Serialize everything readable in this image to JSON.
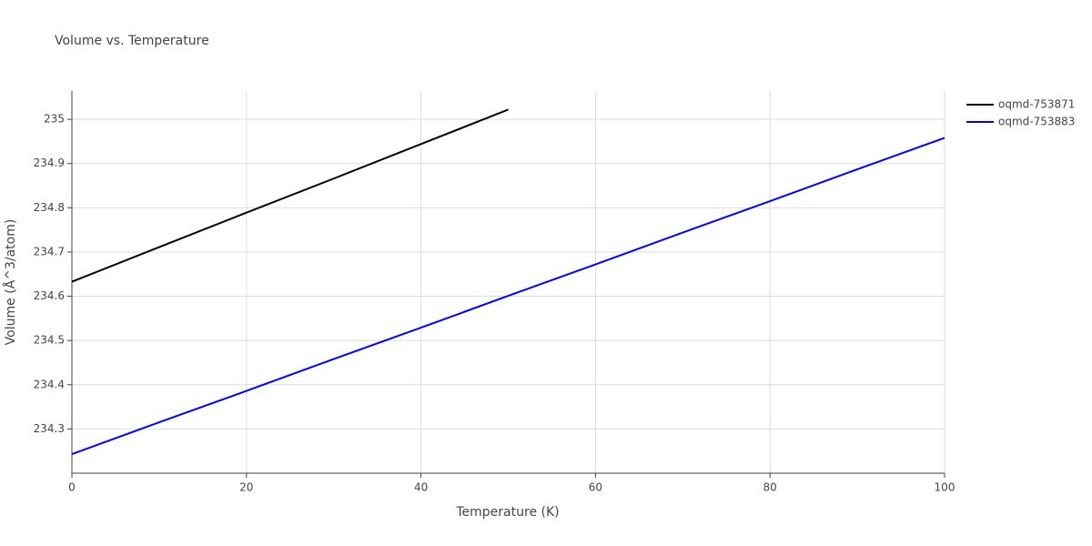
{
  "chart_data": {
    "type": "line",
    "title": "Volume vs. Temperature",
    "x_label": "Temperature (K)",
    "y_label": "Volume (Å^3/atom)",
    "x": [
      0,
      10,
      20,
      30,
      40,
      50,
      60,
      70,
      80,
      90,
      100
    ],
    "series": [
      {
        "name": "oqmd-753871",
        "color": "#000000",
        "values": [
          234.633,
          234.711,
          234.789,
          234.866,
          234.944,
          235.022,
          null,
          null,
          null,
          null,
          null
        ]
      },
      {
        "name": "oqmd-753883",
        "color": "#0000ff",
        "values": [
          234.243,
          234.315,
          234.386,
          234.458,
          234.529,
          234.601,
          234.672,
          234.744,
          234.815,
          234.887,
          234.958
        ]
      }
    ],
    "xlim": [
      0,
      100
    ],
    "xticks": [
      0,
      20,
      40,
      60,
      80,
      100
    ],
    "ylim": [
      234.2,
      235.064
    ],
    "yticks": [
      234.3,
      234.4,
      234.5,
      234.6,
      234.7,
      234.8,
      234.9,
      235
    ],
    "grid": true,
    "legend": "top-right"
  }
}
